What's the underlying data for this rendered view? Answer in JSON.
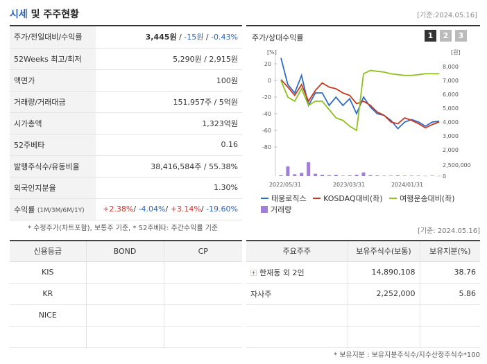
{
  "header": {
    "title_a": "시세",
    "title_b": " 및 주주현황",
    "date": "[기준:2024.05.16]"
  },
  "info_rows": [
    {
      "label": "주가/전일대비/수익률"
    },
    {
      "label": "52Weeks 최고/최저",
      "value": "5,290원 / 2,915원"
    },
    {
      "label": "액면가",
      "value": "100원"
    },
    {
      "label": "거래량/거래대금",
      "value": "151,957주 / 5억원"
    },
    {
      "label": "시가총액",
      "value": "1,323억원"
    },
    {
      "label": "52주베타",
      "value": "0.16"
    },
    {
      "label": "발행주식수/유동비율",
      "value": "38,416,584주 / 55.38%"
    },
    {
      "label": "외국인지분율",
      "value": "1.30%"
    },
    {
      "label": "수익률",
      "label_small": "(1M/3M/6M/1Y)"
    }
  ],
  "price": {
    "price": "3,445원",
    "sep1": " / ",
    "change": "-15원",
    "sep2": " / ",
    "rate": "-0.43%"
  },
  "returns": {
    "r1": "+2.38%",
    "r2": "-4.04%",
    "r3": "+3.14%",
    "r4": "-19.60%"
  },
  "notes": {
    "note1": "* 수정주가(차트포함), 보통주 기준, * 52주베타: 주간수익률 기준",
    "note2": "[기준: 2024.05.16]",
    "note3": "* 보유지분 : 보유지분주식수/지수산정주식수*100"
  },
  "chart": {
    "title": "주가/상대수익률",
    "buttons": [
      "1",
      "2",
      "3"
    ],
    "left_unit": "[%]",
    "right_unit": "[원]",
    "legend": [
      "태웅로직스",
      "KOSDAQ대비(좌)",
      "여행운송대비(좌)",
      "거래량"
    ],
    "colors": {
      "stock": "#2f6cc7",
      "kosdaq": "#c8391f",
      "travel": "#8cc11f",
      "volume": "#a07fd6"
    }
  },
  "chart_data": {
    "type": "line",
    "x_labels": [
      "2022/05/31",
      "2023/03/31",
      "2024/01/31"
    ],
    "left_axis_ticks": [
      "20",
      "0",
      "-20",
      "-40",
      "-60",
      "-80"
    ],
    "right_axis_ticks": [
      "8,000",
      "7,000",
      "6,000",
      "5,000",
      "4,000",
      "3,000",
      "2,000"
    ],
    "volume_axis_ticks": [
      "2,500,000",
      "0"
    ],
    "ylim_left": [
      -80,
      20
    ],
    "ylim_right": [
      2000,
      8000
    ],
    "series": [
      {
        "name": "태웅로직스",
        "axis": "left",
        "values": [
          27,
          -5,
          -15,
          6,
          -30,
          -15,
          -15,
          -30,
          -20,
          -30,
          -22,
          -40,
          -20,
          -32,
          -40,
          -42,
          -48,
          -58,
          -50,
          -47,
          -50,
          -55,
          -50,
          -49
        ]
      },
      {
        "name": "KOSDAQ대비(좌)",
        "axis": "left",
        "values": [
          1,
          -8,
          -18,
          -5,
          -25,
          -12,
          -3,
          -8,
          -10,
          -15,
          -18,
          -28,
          -25,
          -30,
          -38,
          -42,
          -50,
          -52,
          -45,
          -48,
          -52,
          -57,
          -53,
          -50
        ]
      },
      {
        "name": "여행운송대비(좌)",
        "axis": "left",
        "values": [
          0,
          -20,
          -25,
          -10,
          -30,
          -25,
          -25,
          -35,
          -45,
          -48,
          -55,
          -60,
          8,
          12,
          11,
          10,
          8,
          7,
          6,
          6,
          7,
          8,
          8,
          8
        ]
      },
      {
        "name": "거래량",
        "axis": "volume",
        "values": [
          200000,
          2100000,
          400000,
          700000,
          3000000,
          500000,
          300000,
          200000,
          300000,
          100000,
          150000,
          300000,
          800000,
          200000,
          150000,
          100000,
          100000,
          150000,
          100000,
          100000,
          100000,
          50000,
          100000,
          50000
        ]
      }
    ]
  },
  "credit": {
    "headers": [
      "신용등급",
      "BOND",
      "CP"
    ],
    "rows": [
      [
        "KIS",
        "",
        ""
      ],
      [
        "KR",
        "",
        ""
      ],
      [
        "NICE",
        "",
        ""
      ],
      [
        "",
        "",
        ""
      ]
    ]
  },
  "holders": {
    "headers": [
      "주요주주",
      "보유주식수(보통)",
      "보유지분(%)"
    ],
    "rows": [
      {
        "name": "한재동 외 2인",
        "shares": "14,890,108",
        "pct": "38.76",
        "expandable": true
      },
      {
        "name": "자사주",
        "shares": "2,252,000",
        "pct": "5.86",
        "expandable": false
      },
      {
        "name": "",
        "shares": "",
        "pct": ""
      },
      {
        "name": "",
        "shares": "",
        "pct": ""
      }
    ]
  }
}
